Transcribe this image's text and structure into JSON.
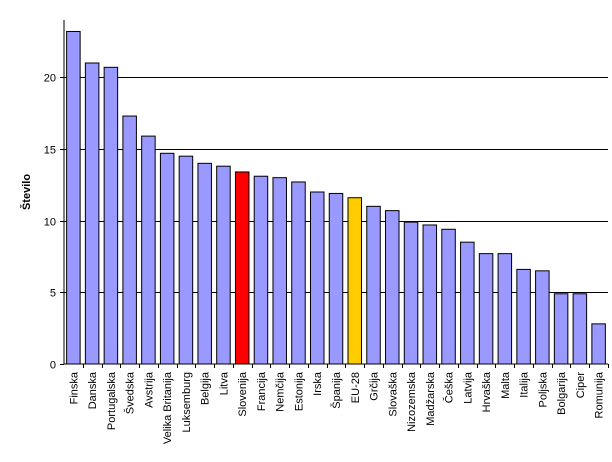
{
  "chart_data": {
    "type": "bar",
    "ylabel": "Število",
    "ylim": [
      0,
      24
    ],
    "yticks": [
      0,
      5,
      10,
      15,
      20
    ],
    "grid": true,
    "categories": [
      "Finska",
      "Danska",
      "Portugalska",
      "Švedska",
      "Avstrija",
      "Velika Britanija",
      "Luksemburg",
      "Belgija",
      "Litva",
      "Slovenija",
      "Francija",
      "Nemčija",
      "Estonija",
      "Irska",
      "Španija",
      "EU-28",
      "Grčija",
      "Slovaška",
      "Nizozemska",
      "Madžarska",
      "Češka",
      "Latvija",
      "Hrvaška",
      "Malta",
      "Italija",
      "Poljska",
      "Bolgarija",
      "Ciper",
      "Romunija"
    ],
    "values": [
      23.2,
      21.0,
      20.7,
      17.3,
      15.9,
      14.7,
      14.5,
      14.0,
      13.8,
      13.4,
      13.1,
      13.0,
      12.7,
      12.0,
      11.9,
      11.6,
      11.0,
      10.7,
      9.9,
      9.7,
      9.4,
      8.5,
      7.7,
      7.7,
      6.6,
      6.5,
      4.9,
      4.9,
      2.8
    ],
    "colors": {
      "default": "#9999FF",
      "highlights": {
        "Slovenija": "#FF0000",
        "EU-28": "#FFCC00"
      },
      "bar_outline": "#000000",
      "grid": "#000000"
    }
  }
}
